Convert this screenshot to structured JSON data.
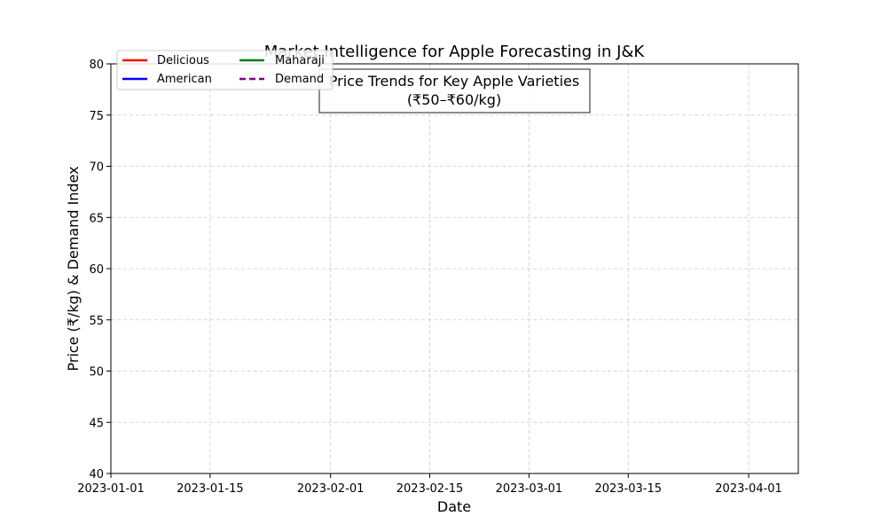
{
  "chart_data": {
    "type": "line",
    "title": "Market Intelligence for Apple Forecasting in J&K",
    "xlabel": "Date",
    "ylabel": "Price (₹/kg) & Demand Index",
    "xlim": [
      "2023-01-01",
      "2023-04-08"
    ],
    "ylim": [
      40,
      80
    ],
    "x_ticks": [
      "2023-01-01",
      "2023-01-15",
      "2023-02-01",
      "2023-02-15",
      "2023-03-01",
      "2023-03-15",
      "2023-04-01"
    ],
    "y_ticks": [
      40,
      45,
      50,
      55,
      60,
      65,
      70,
      75,
      80
    ],
    "grid": true,
    "annotation": {
      "line1": "Price Trends for Key Apple Varieties",
      "line2": "(₹50–₹60/kg)"
    },
    "legend_position": "top-left",
    "series": [
      {
        "name": "Delicious",
        "color": "#ff0000",
        "style": "solid",
        "values": []
      },
      {
        "name": "American",
        "color": "#0000ff",
        "style": "solid",
        "values": []
      },
      {
        "name": "Maharaji",
        "color": "#008000",
        "style": "solid",
        "values": []
      },
      {
        "name": "Demand",
        "color": "#800080",
        "style": "dashed",
        "values": []
      }
    ]
  }
}
